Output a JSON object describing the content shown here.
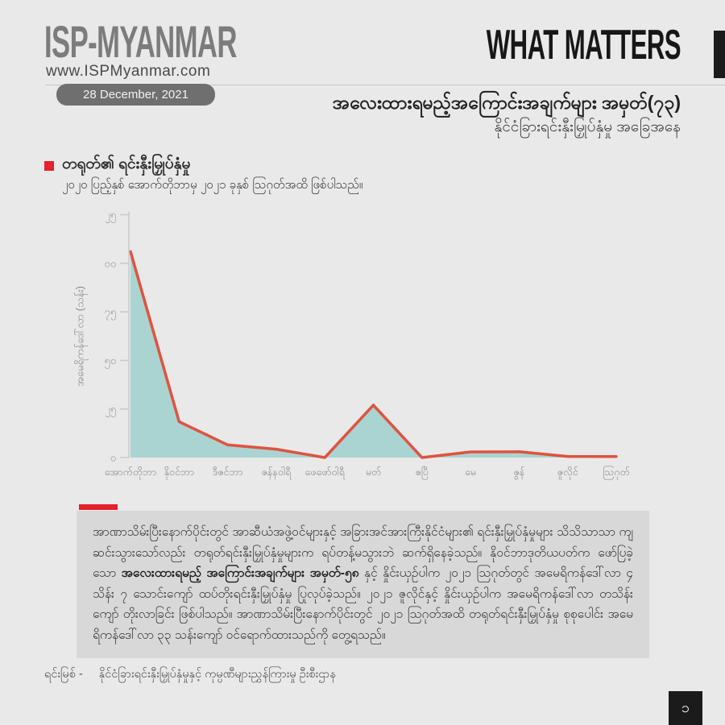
{
  "header": {
    "logo": "ISP-MYANMAR",
    "website": "www.ISPMyanmar.com",
    "date": "28 December, 2021",
    "brand_title": "WHAT MATTERS",
    "issue_title": "အလေးထားရမည့်အကြောင်းအချက်များ အမှတ်(၇၃)",
    "issue_subtitle": "နိုင်ငံခြားရင်းနှီးမြှုပ်နှံမှု အခြေအနေ"
  },
  "section": {
    "title": "တရုတ်၏ ရင်းနှီးမြှုပ်နှံမှု",
    "subtitle": "၂၀၂၀ ပြည့်နှစ် အောက်တိုဘာမှ ၂၀၂၁ ခုနှစ် သြဂုတ်အထိ ဖြစ်ပါသည်။"
  },
  "chart_data": {
    "type": "area",
    "title": "China investment in Myanmar, Oct 2020 - Aug 2021",
    "ylabel": "အမေရိကန်ဒေါ်လာ (သန်း)",
    "categories": [
      "အောက်တိုဘာ",
      "နိုဝင်ဘာ",
      "ဒီဇင်ဘာ",
      "ဇန်နဝါရီ",
      "ဖေဖော်ဝါရီ",
      "မတ်",
      "ဧပြီ",
      "မေ",
      "ဇွန်",
      "ဇူလိုင်",
      "သြဂုတ်"
    ],
    "values": [
      106,
      18.5,
      6.5,
      4.3,
      0,
      27,
      0,
      2.9,
      3,
      0.6,
      0.5
    ],
    "ylim": [
      0,
      125
    ],
    "yticks": {
      "values": [
        0,
        25,
        50,
        75,
        100,
        125
      ],
      "labels": [
        "၀",
        "၂၅",
        "၅၀",
        "၇၅",
        "၁၀၀",
        "၁၂၅"
      ]
    },
    "grid": false,
    "legend": false,
    "line_color": "#df5340",
    "fill_color": "#a9d4d1",
    "axis_color": "#c9c9c9",
    "tick_label_color": "#9a9a9a",
    "x_label_color": "#8c8c8c"
  },
  "body": {
    "paragraph": {
      "part1": "အာဏာသိမ်းပြီးနောက်ပိုင်းတွင် အာဆီယံအဖွဲ့ဝင်များနှင့် အခြားအင်အားကြီးနိုင်ငံများ၏ ရင်းနှီးမြှုပ်နှံမှုများ သိသိသာသာ ကျဆင်းသွားသော်လည်း တရုတ်ရင်းနှီးမြှုပ်နှံမှုများက ရပ်တန့်မသွားဘဲ ဆက်ရှိနေခဲ့သည်။ နိုဝင်ဘာဒုတိယပတ်က ဖော်ပြခဲ့သော ",
      "bold": "အလေးထားရမည့် အကြောင်းအချက်များ အမှတ်-၅၈",
      "part2": " နှင့် နှိုင်းယှဉ်ပါက ၂၀၂၁ သြဂုတ်တွင် အမေရိကန်ဒေါ်လာ ၄ သိန်း ၇ သောင်းကျော် ထပ်တိုးရင်းနှီးမြှုပ်နှံမှု ပြုလုပ်ခဲ့သည်။ ၂၀၂၁ ဇူလိုင်နှင့် နှိုင်းယှဉ်ပါက အမေရိကန်ဒေါ်လာ တသိန်းကျော် တိုးလာခြင်း ဖြစ်ပါသည်။ အာဏာသိမ်းပြီးနောက်ပိုင်းတွင် ၂၀၂၁ သြဂုတ်အထိ တရုတ်ရင်းနှီးမြှုပ်နှံမှု စုစုပေါင်း အမေရိကန်ဒေါ်လာ ၃၃ သန်းကျော် ဝင်ရောက်ထားသည်ကို တွေ့ရသည်။"
    }
  },
  "footer": {
    "source_label": "ရင်းမြစ် -",
    "source_value": "နိုင်ငံခြားရင်းနှီးမြှုပ်နှံမှုနှင့် ကုမ္ပဏီများညွှန်ကြားမှု ဦးစီးဌာန",
    "page_number": "၁"
  },
  "colors": {
    "background": "#e9e9e9",
    "accent_red": "#e5212b",
    "chart_line": "#df5340",
    "chart_fill": "#a9d4d1",
    "note_background": "#d8d8d8",
    "pill_gray": "#6f6f6f",
    "logo_gray": "#7c7c7c",
    "black_box": "#1b1b1b"
  }
}
